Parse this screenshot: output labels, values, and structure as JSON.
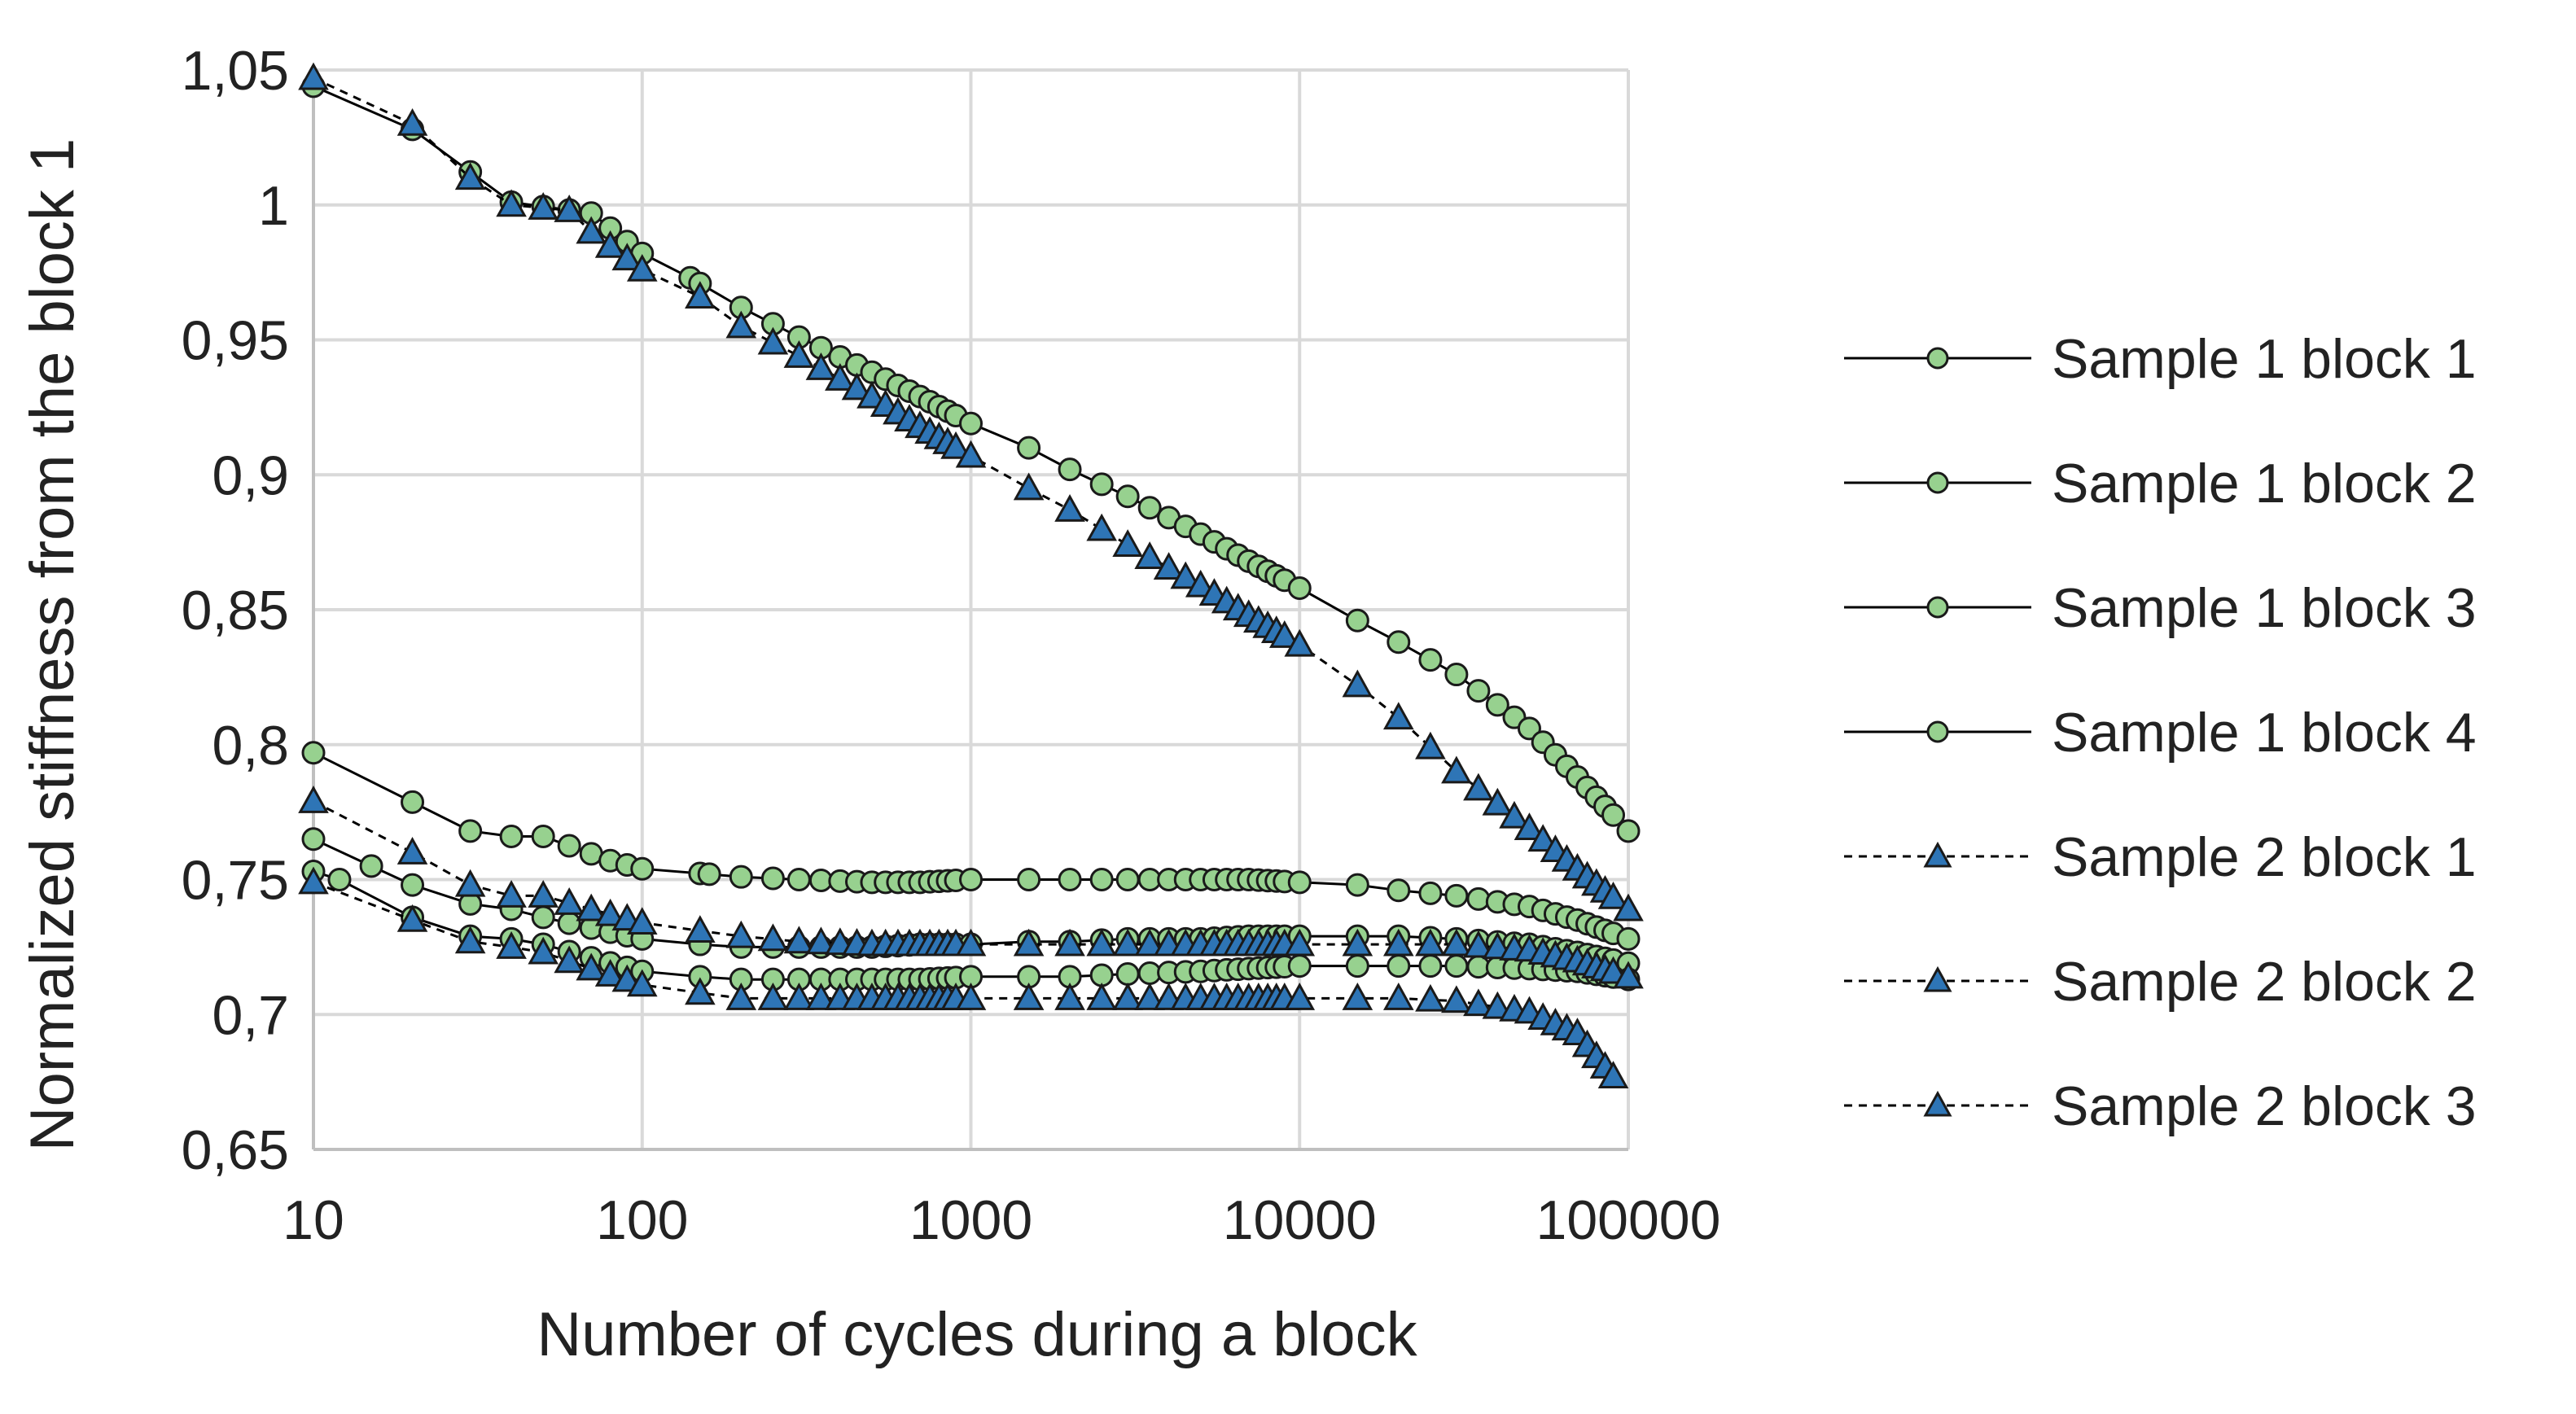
{
  "chart_data": {
    "type": "line",
    "title": "",
    "xlabel": "Number of cycles during a block",
    "ylabel": "Normalized stiffness from the block 1",
    "xscale": "log",
    "xlim": [
      10,
      100000
    ],
    "ylim": [
      0.65,
      1.05
    ],
    "grid": true,
    "legend_position": "right",
    "x_tick_labels": [
      "10",
      "100",
      "1000",
      "10000",
      "100000"
    ],
    "y_tick_labels": [
      "0,65",
      "0,7",
      "0,75",
      "0,8",
      "0,85",
      "0,9",
      "0,95",
      "1",
      "1,05"
    ],
    "marker_colors": {
      "circle": "#97d18f",
      "triangle": "#2e75b6",
      "line": "#000000"
    },
    "series": [
      {
        "name": "Sample 1 block 1",
        "marker": "circle",
        "line": "solid",
        "x": [
          10,
          20,
          40,
          70,
          100,
          140,
          200,
          300,
          500,
          700,
          1000,
          1500,
          2000,
          3000,
          5000,
          7000,
          10000,
          15000,
          20000,
          30000,
          50000,
          70000,
          100000
        ],
        "y": [
          1.044,
          1.028,
          1.001,
          0.997,
          0.982,
          0.973,
          0.962,
          0.951,
          0.938,
          0.929,
          0.919,
          0.91,
          0.902,
          0.892,
          0.878,
          0.868,
          0.858,
          0.846,
          0.838,
          0.826,
          0.806,
          0.788,
          0.768
        ]
      },
      {
        "name": "Sample 1 block 2",
        "marker": "circle",
        "line": "solid",
        "x": [
          10,
          30,
          40,
          50,
          80,
          100,
          160,
          200,
          300,
          500,
          700,
          1000,
          1500,
          2000,
          3000,
          5000,
          7000,
          10000,
          15000,
          20000,
          30000,
          50000,
          70000,
          100000
        ],
        "y": [
          0.797,
          0.768,
          0.766,
          0.766,
          0.757,
          0.754,
          0.752,
          0.751,
          0.75,
          0.749,
          0.749,
          0.75,
          0.75,
          0.75,
          0.75,
          0.75,
          0.75,
          0.749,
          0.748,
          0.746,
          0.744,
          0.74,
          0.735,
          0.728
        ]
      },
      {
        "name": "Sample 1 block 3",
        "marker": "circle",
        "line": "solid",
        "x": [
          10,
          15,
          20,
          30,
          40,
          50,
          70,
          100,
          150,
          200,
          300,
          500,
          700,
          1000,
          1500,
          2000,
          3000,
          5000,
          7000,
          10000,
          15000,
          20000,
          30000,
          50000,
          70000,
          100000
        ],
        "y": [
          0.765,
          0.755,
          0.748,
          0.741,
          0.739,
          0.736,
          0.732,
          0.728,
          0.726,
          0.725,
          0.725,
          0.725,
          0.726,
          0.726,
          0.727,
          0.727,
          0.728,
          0.728,
          0.729,
          0.729,
          0.729,
          0.729,
          0.728,
          0.726,
          0.723,
          0.719
        ]
      },
      {
        "name": "Sample 1 block 4",
        "marker": "circle",
        "line": "solid",
        "x": [
          10,
          12,
          20,
          30,
          40,
          50,
          70,
          100,
          150,
          200,
          300,
          500,
          700,
          1000,
          1500,
          2000,
          3000,
          5000,
          7000,
          10000,
          15000,
          20000,
          30000,
          50000,
          70000,
          100000
        ],
        "y": [
          0.753,
          0.75,
          0.736,
          0.729,
          0.728,
          0.726,
          0.721,
          0.716,
          0.714,
          0.713,
          0.713,
          0.713,
          0.713,
          0.714,
          0.714,
          0.714,
          0.715,
          0.716,
          0.717,
          0.718,
          0.718,
          0.718,
          0.718,
          0.717,
          0.716,
          0.713
        ]
      },
      {
        "name": "Sample 2 block 1",
        "marker": "triangle",
        "line": "dashed",
        "x": [
          10,
          20,
          30,
          40,
          60,
          70,
          100,
          150,
          200,
          300,
          500,
          700,
          1000,
          1500,
          2000,
          3000,
          5000,
          7000,
          10000,
          15000,
          20000,
          30000,
          50000,
          70000,
          100000
        ],
        "y": [
          1.047,
          1.03,
          1.01,
          1.0,
          0.998,
          0.99,
          0.976,
          0.966,
          0.955,
          0.944,
          0.929,
          0.918,
          0.907,
          0.895,
          0.887,
          0.874,
          0.859,
          0.848,
          0.837,
          0.822,
          0.81,
          0.79,
          0.769,
          0.754,
          0.739
        ]
      },
      {
        "name": "Sample 2 block 2",
        "marker": "triangle",
        "line": "dashed",
        "x": [
          10,
          20,
          30,
          40,
          50,
          70,
          100,
          150,
          200,
          300,
          500,
          700,
          1000,
          1500,
          2000,
          3000,
          5000,
          7000,
          10000,
          15000,
          20000,
          30000,
          50000,
          70000,
          100000
        ],
        "y": [
          0.779,
          0.76,
          0.748,
          0.744,
          0.744,
          0.739,
          0.734,
          0.731,
          0.729,
          0.727,
          0.726,
          0.726,
          0.726,
          0.726,
          0.726,
          0.726,
          0.726,
          0.726,
          0.726,
          0.726,
          0.726,
          0.726,
          0.724,
          0.72,
          0.714
        ]
      },
      {
        "name": "Sample 2 block 3",
        "marker": "triangle",
        "line": "dashed",
        "x": [
          10,
          20,
          30,
          40,
          50,
          70,
          100,
          150,
          200,
          300,
          500,
          700,
          1000,
          1500,
          2000,
          3000,
          5000,
          7000,
          10000,
          15000,
          20000,
          30000,
          50000,
          70000,
          90000
        ],
        "y": [
          0.749,
          0.735,
          0.727,
          0.725,
          0.723,
          0.717,
          0.711,
          0.708,
          0.706,
          0.706,
          0.706,
          0.706,
          0.706,
          0.706,
          0.706,
          0.706,
          0.706,
          0.706,
          0.706,
          0.706,
          0.706,
          0.705,
          0.701,
          0.693,
          0.677
        ]
      }
    ]
  }
}
